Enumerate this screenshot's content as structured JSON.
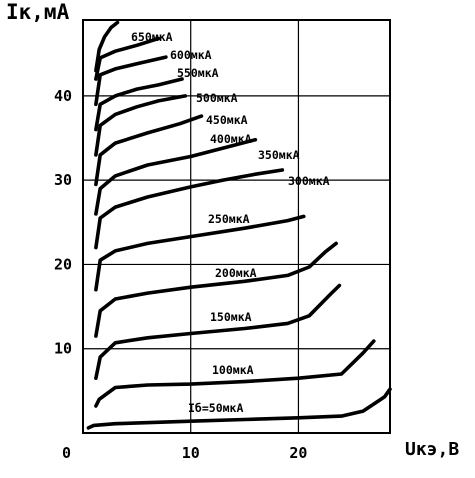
{
  "chart_data": {
    "type": "line",
    "title": "",
    "ylabel": "Iк,мА",
    "xlabel": "Uкэ,В",
    "xlim": [
      0,
      28.5
    ],
    "ylim": [
      0,
      49
    ],
    "x_ticks": [
      0,
      10,
      20
    ],
    "y_ticks": [
      10,
      20,
      30,
      40
    ],
    "grid": true,
    "series": [
      {
        "name": "Iб=50мкА",
        "points": [
          [
            0.5,
            0.6
          ],
          [
            1.0,
            0.9
          ],
          [
            3,
            1.1
          ],
          [
            10,
            1.4
          ],
          [
            15,
            1.6
          ],
          [
            20,
            1.8
          ],
          [
            24,
            2.0
          ],
          [
            26,
            2.6
          ],
          [
            28,
            4.3
          ],
          [
            28.5,
            5.2
          ]
        ]
      },
      {
        "name": "100мкА",
        "points": [
          [
            1.2,
            3.2
          ],
          [
            1.5,
            4.0
          ],
          [
            3,
            5.4
          ],
          [
            6,
            5.7
          ],
          [
            10,
            5.8
          ],
          [
            15,
            6.1
          ],
          [
            20,
            6.5
          ],
          [
            24,
            7.0
          ],
          [
            26,
            9.5
          ],
          [
            27,
            10.9
          ]
        ]
      },
      {
        "name": "150мкА",
        "points": [
          [
            1.2,
            6.5
          ],
          [
            1.6,
            9.0
          ],
          [
            3,
            10.7
          ],
          [
            6,
            11.3
          ],
          [
            10,
            11.8
          ],
          [
            15,
            12.4
          ],
          [
            19,
            13.0
          ],
          [
            21,
            13.9
          ],
          [
            23,
            16.5
          ],
          [
            23.8,
            17.5
          ]
        ]
      },
      {
        "name": "200мкА",
        "points": [
          [
            1.2,
            11.5
          ],
          [
            1.6,
            14.5
          ],
          [
            3,
            15.9
          ],
          [
            6,
            16.6
          ],
          [
            10,
            17.3
          ],
          [
            15,
            18.0
          ],
          [
            19,
            18.7
          ],
          [
            21,
            19.7
          ],
          [
            22.5,
            21.5
          ],
          [
            23.5,
            22.5
          ]
        ]
      },
      {
        "name": "250мкА",
        "points": [
          [
            1.2,
            17.0
          ],
          [
            1.6,
            20.5
          ],
          [
            3,
            21.6
          ],
          [
            6,
            22.5
          ],
          [
            10,
            23.3
          ],
          [
            15,
            24.3
          ],
          [
            19,
            25.2
          ],
          [
            20.5,
            25.7
          ]
        ]
      },
      {
        "name": "300мкА",
        "points": [
          [
            1.2,
            22.0
          ],
          [
            1.6,
            25.5
          ],
          [
            3,
            26.8
          ],
          [
            6,
            28.0
          ],
          [
            10,
            29.2
          ],
          [
            13,
            30.0
          ],
          [
            16,
            30.7
          ],
          [
            18.5,
            31.2
          ]
        ]
      },
      {
        "name": "350мкА",
        "points": [
          [
            1.2,
            26.0
          ],
          [
            1.6,
            29.0
          ],
          [
            3,
            30.5
          ],
          [
            6,
            31.8
          ],
          [
            10,
            32.8
          ],
          [
            13,
            33.8
          ],
          [
            16,
            34.8
          ]
        ]
      },
      {
        "name": "400мкА",
        "points": [
          [
            1.2,
            29.5
          ],
          [
            1.6,
            33.0
          ],
          [
            3,
            34.4
          ],
          [
            6,
            35.6
          ],
          [
            9,
            36.7
          ],
          [
            11,
            37.6
          ]
        ]
      },
      {
        "name": "450мкА",
        "points": [
          [
            1.2,
            33.0
          ],
          [
            1.6,
            36.5
          ],
          [
            3,
            37.8
          ],
          [
            5,
            38.7
          ],
          [
            7,
            39.4
          ],
          [
            9.5,
            40.0
          ]
        ]
      },
      {
        "name": "500мкА",
        "points": [
          [
            1.2,
            36.0
          ],
          [
            1.6,
            39.0
          ],
          [
            3,
            40.0
          ],
          [
            5,
            40.8
          ],
          [
            7,
            41.3
          ],
          [
            9.2,
            42.0
          ]
        ]
      },
      {
        "name": "550мкА",
        "points": [
          [
            1.2,
            39.0
          ],
          [
            1.6,
            42.5
          ],
          [
            3,
            43.2
          ],
          [
            5,
            43.8
          ],
          [
            7.7,
            44.6
          ]
        ]
      },
      {
        "name": "600мкА",
        "points": [
          [
            1.2,
            42.0
          ],
          [
            1.6,
            44.5
          ],
          [
            3,
            45.3
          ],
          [
            5,
            46.0
          ],
          [
            7,
            46.8
          ]
        ]
      },
      {
        "name": "650мкА",
        "points": [
          [
            1.2,
            43.0
          ],
          [
            1.5,
            45.5
          ],
          [
            2.0,
            47.0
          ],
          [
            2.6,
            48.1
          ],
          [
            3.2,
            48.7
          ]
        ]
      }
    ]
  },
  "labels": {
    "y_axis": "Iк,мА",
    "x_axis": "Uкэ,В",
    "origin": "0"
  }
}
